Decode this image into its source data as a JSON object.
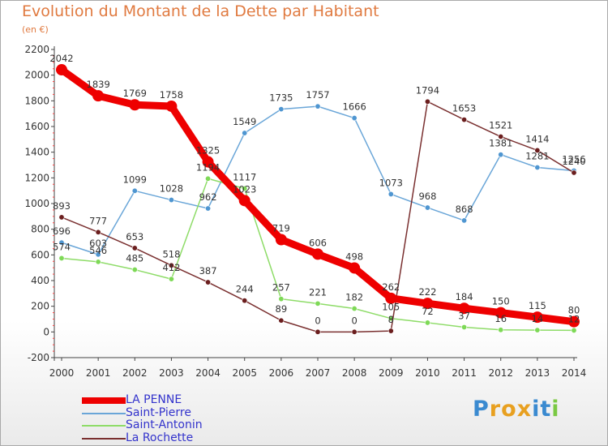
{
  "chart_data": {
    "type": "line",
    "title": "Evolution du Montant de la Dette par Habitant",
    "subtitle": "(en €)",
    "xlabel": "",
    "ylabel": "",
    "ylim": [
      -200,
      2200
    ],
    "yticks": [
      -200,
      0,
      200,
      400,
      600,
      800,
      1000,
      1200,
      1400,
      1600,
      1800,
      2000,
      2200
    ],
    "x": [
      2000,
      2001,
      2002,
      2003,
      2004,
      2005,
      2006,
      2007,
      2008,
      2009,
      2010,
      2011,
      2012,
      2013,
      2014
    ],
    "grid": false,
    "legend_position": "bottom-left",
    "series": [
      {
        "name": "Saint-Pierre",
        "color": "#4f96d1",
        "line_color": "#6aa6d8",
        "values": [
          696,
          603,
          1099,
          1028,
          962,
          1549,
          1735,
          1757,
          1666,
          1073,
          968,
          868,
          1381,
          1281,
          1256
        ]
      },
      {
        "name": "Saint-Antonin",
        "color": "#7ed957",
        "line_color": "#8edc68",
        "values": [
          574,
          546,
          485,
          412,
          1194,
          1117,
          257,
          221,
          182,
          105,
          72,
          37,
          16,
          14,
          12
        ]
      },
      {
        "name": "La Rochette",
        "color": "#6b1e1e",
        "line_color": "#7a3030",
        "values": [
          893,
          777,
          653,
          518,
          387,
          244,
          89,
          0,
          0,
          8,
          1794,
          1653,
          1521,
          1414,
          1240
        ]
      },
      {
        "name": "LA PENNE",
        "color": "#ee0000",
        "line_color": "#ee0000",
        "values": [
          2042,
          1839,
          1769,
          1758,
          1325,
          1023,
          719,
          606,
          498,
          262,
          222,
          184,
          150,
          115,
          80
        ]
      }
    ]
  },
  "legend": {
    "items": [
      {
        "label": "LA PENNE",
        "color": "#ee0000",
        "thickness": 8
      },
      {
        "label": "Saint-Pierre",
        "color": "#6aa6d8",
        "thickness": 2
      },
      {
        "label": "Saint-Antonin",
        "color": "#8edc68",
        "thickness": 2
      },
      {
        "label": "La Rochette",
        "color": "#7a3030",
        "thickness": 2
      }
    ]
  },
  "logo": {
    "letters": [
      "P",
      "r",
      "o",
      "x",
      "i",
      "t",
      "i"
    ],
    "colors": [
      "#3a8ad0",
      "#e8a020",
      "#e8a020",
      "#e8a020",
      "#3a8ad0",
      "#3a8ad0",
      "#7ac943"
    ]
  }
}
